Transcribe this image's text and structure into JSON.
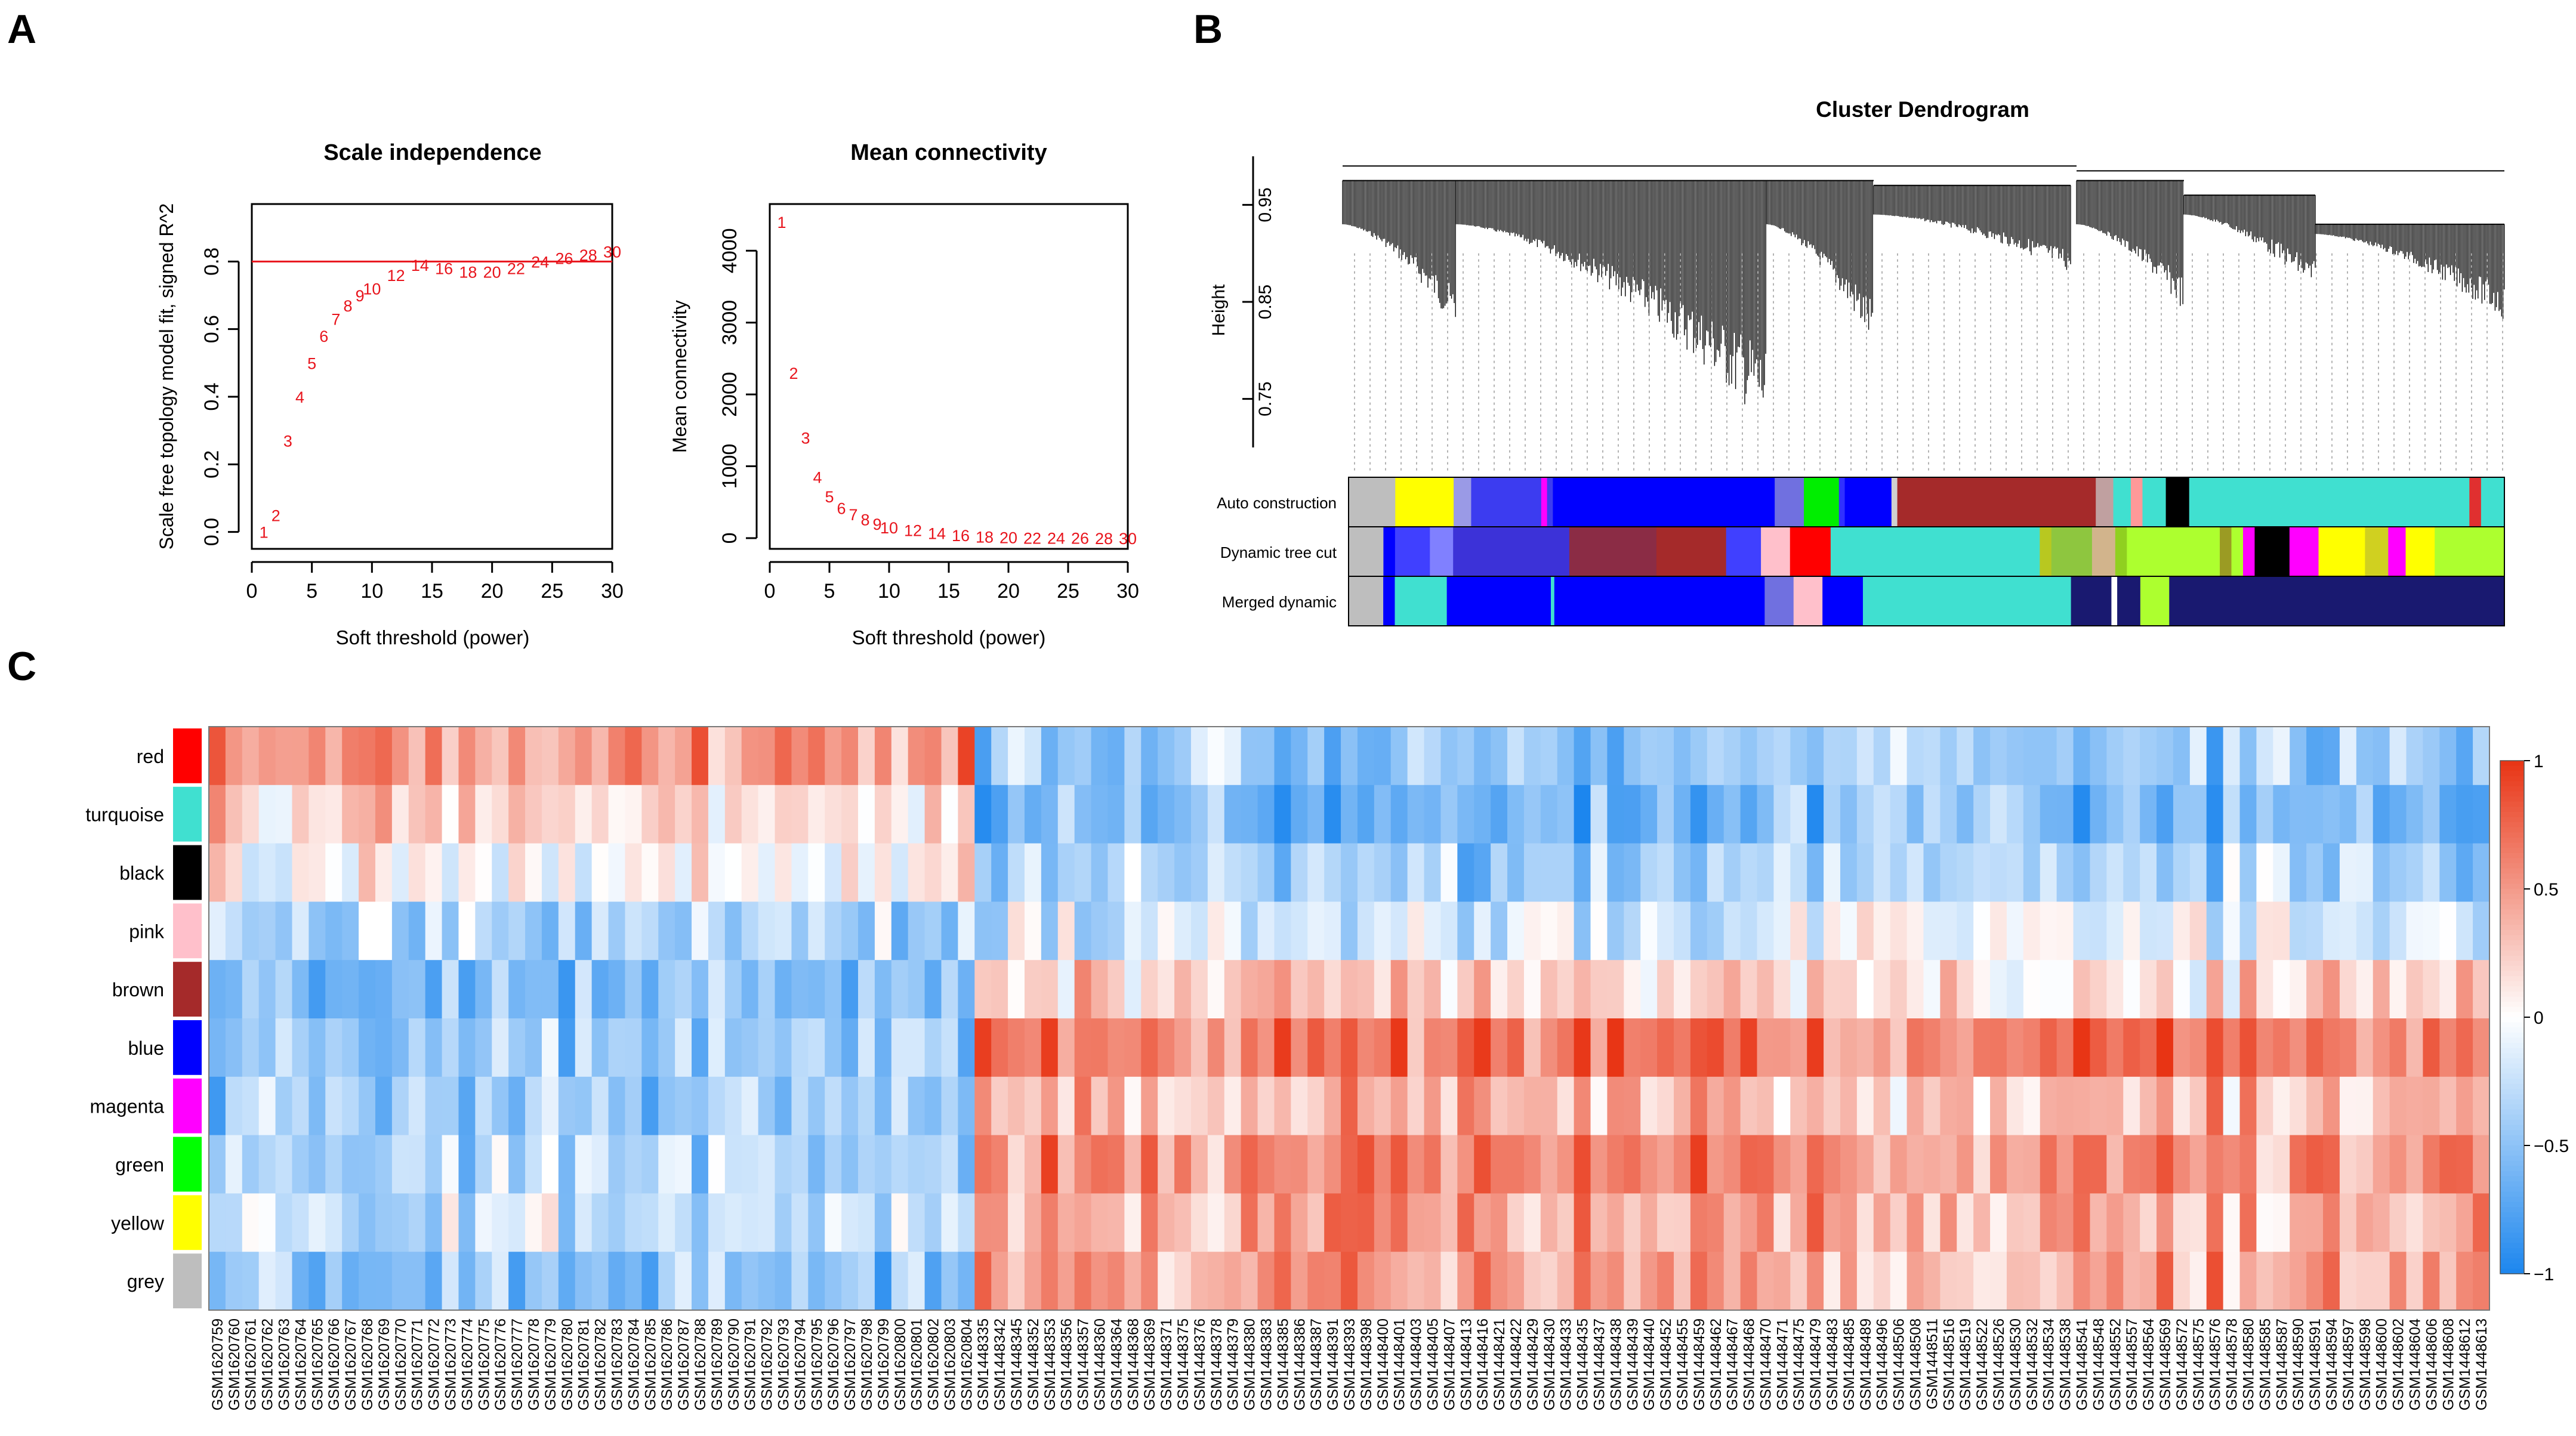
{
  "panels": {
    "a": "A",
    "b": "B",
    "c": "C"
  },
  "chart_data": [
    {
      "type": "scatter",
      "panel": "A",
      "title": "Scale independence",
      "xlabel": "Soft threshold (power)",
      "ylabel": "Scale free topology model fit, signed R^2",
      "xlim": [
        0,
        30
      ],
      "ylim": [
        -0.05,
        0.97
      ],
      "xticks": [
        "0",
        "5",
        "10",
        "15",
        "20",
        "25",
        "30"
      ],
      "yticks": [
        "0.0",
        "0.2",
        "0.4",
        "0.6",
        "0.8"
      ],
      "threshold_line": 0.8,
      "point_color": "#e8141c",
      "x": [
        1,
        2,
        3,
        4,
        5,
        6,
        7,
        8,
        9,
        10,
        12,
        14,
        16,
        18,
        20,
        22,
        24,
        26,
        28,
        30
      ],
      "y": [
        0.0,
        0.05,
        0.27,
        0.4,
        0.5,
        0.58,
        0.63,
        0.67,
        0.7,
        0.72,
        0.76,
        0.79,
        0.78,
        0.77,
        0.77,
        0.78,
        0.8,
        0.81,
        0.82,
        0.83
      ],
      "labels": [
        "1",
        "2",
        "3",
        "4",
        "5",
        "6",
        "7",
        "8",
        "9",
        "10",
        "12",
        "14",
        "16",
        "18",
        "20",
        "22",
        "24",
        "26",
        "28",
        "30"
      ]
    },
    {
      "type": "scatter",
      "panel": "A",
      "title": "Mean connectivity",
      "xlabel": "Soft threshold (power)",
      "ylabel": "Mean connectivity",
      "xlim": [
        0,
        30
      ],
      "ylim": [
        -150,
        4650
      ],
      "xticks": [
        "0",
        "5",
        "10",
        "15",
        "20",
        "25",
        "30"
      ],
      "yticks": [
        "0",
        "1000",
        "2000",
        "3000",
        "4000"
      ],
      "point_color": "#e8141c",
      "x": [
        1,
        2,
        3,
        4,
        5,
        6,
        7,
        8,
        9,
        10,
        12,
        14,
        16,
        18,
        20,
        22,
        24,
        26,
        28,
        30
      ],
      "y": [
        4400,
        2300,
        1400,
        850,
        580,
        420,
        330,
        260,
        200,
        150,
        110,
        70,
        40,
        20,
        10,
        5,
        3,
        2,
        1,
        0
      ],
      "labels": [
        "1",
        "2",
        "3",
        "4",
        "5",
        "6",
        "7",
        "8",
        "9",
        "10",
        "12",
        "14",
        "16",
        "18",
        "20",
        "22",
        "24",
        "26",
        "28",
        "30"
      ]
    },
    {
      "type": "dendrogram",
      "panel": "B",
      "title": "Cluster Dendrogram",
      "ylabel": "Height",
      "ylim": [
        0.7,
        1.0
      ],
      "yticks": [
        "0.75",
        "0.85",
        "0.95"
      ],
      "color_rows": [
        {
          "label": "Auto construction",
          "segments": [
            [
              0.04,
              "#bebebe"
            ],
            [
              0.05,
              "#ffff00"
            ],
            [
              0.015,
              "#9a9ae6"
            ],
            [
              0.06,
              "#3c3cf0"
            ],
            [
              0.005,
              "#ff00ff"
            ],
            [
              0.005,
              "#3c3cf0"
            ],
            [
              0.19,
              "#0000ff"
            ],
            [
              0.025,
              "#7070e0"
            ],
            [
              0.03,
              "#00ee00"
            ],
            [
              0.005,
              "#3030ff"
            ],
            [
              0.04,
              "#0000ff"
            ],
            [
              0.005,
              "#d0d0d0"
            ],
            [
              0.17,
              "#a52a2a"
            ],
            [
              0.015,
              "#c0a0a0"
            ],
            [
              0.015,
              "#40e0d0"
            ],
            [
              0.01,
              "#ff9999"
            ],
            [
              0.02,
              "#40e0d0"
            ],
            [
              0.02,
              "#000000"
            ],
            [
              0.24,
              "#40e0d0"
            ],
            [
              0.01,
              "#e03030"
            ],
            [
              0.02,
              "#40e0d0"
            ]
          ]
        },
        {
          "label": "Dynamic tree cut",
          "segments": [
            [
              0.03,
              "#bebebe"
            ],
            [
              0.01,
              "#0000ff"
            ],
            [
              0.03,
              "#4040ff"
            ],
            [
              0.02,
              "#8080ff"
            ],
            [
              0.1,
              "#3c32d8"
            ],
            [
              0.075,
              "#8b2c45"
            ],
            [
              0.06,
              "#a52a2a"
            ],
            [
              0.03,
              "#4040ff"
            ],
            [
              0.025,
              "#ffc0cb"
            ],
            [
              0.035,
              "#ff0000"
            ],
            [
              0.18,
              "#40e0d0"
            ],
            [
              0.01,
              "#b8c820"
            ],
            [
              0.035,
              "#8ec63f"
            ],
            [
              0.02,
              "#d2b48c"
            ],
            [
              0.01,
              "#90d020"
            ],
            [
              0.08,
              "#adff2f"
            ],
            [
              0.01,
              "#9b9b23"
            ],
            [
              0.01,
              "#adff2f"
            ],
            [
              0.01,
              "#ff00ff"
            ],
            [
              0.03,
              "#000000"
            ],
            [
              0.025,
              "#ff00ff"
            ],
            [
              0.04,
              "#ffff00"
            ],
            [
              0.02,
              "#d0d020"
            ],
            [
              0.015,
              "#ff00ff"
            ],
            [
              0.025,
              "#ffff00"
            ],
            [
              0.06,
              "#adff2f"
            ]
          ]
        },
        {
          "label": "Merged dynamic",
          "segments": [
            [
              0.03,
              "#bebebe"
            ],
            [
              0.01,
              "#0000ff"
            ],
            [
              0.045,
              "#40e0d0"
            ],
            [
              0.09,
              "#0000ff"
            ],
            [
              0.003,
              "#40e0d0"
            ],
            [
              0.182,
              "#0000ff"
            ],
            [
              0.025,
              "#7070e0"
            ],
            [
              0.025,
              "#ffc0cb"
            ],
            [
              0.035,
              "#0000ff"
            ],
            [
              0.18,
              "#40e0d0"
            ],
            [
              0.035,
              "#191970"
            ],
            [
              0.005,
              "#ffffff"
            ],
            [
              0.02,
              "#191970"
            ],
            [
              0.025,
              "#adff2f"
            ],
            [
              0.29,
              "#191970"
            ]
          ]
        }
      ]
    },
    {
      "type": "heatmap",
      "panel": "C",
      "rows": [
        "red",
        "turquoise",
        "black",
        "pink",
        "brown",
        "blue",
        "magenta",
        "green",
        "yellow",
        "grey"
      ],
      "row_colors": [
        "#ff0000",
        "#40e0d0",
        "#000000",
        "#ffc0cb",
        "#a52a2a",
        "#0000ff",
        "#ff00ff",
        "#00ff00",
        "#ffff00",
        "#bebebe"
      ],
      "colorbar_ticks": [
        "1",
        "0.5",
        "0",
        "−0.5",
        "−1"
      ],
      "colorbar_range": [
        -1,
        1
      ],
      "sample_groups": [
        {
          "prefix": "GSM16207",
          "count": 46,
          "pattern": [
            0.5,
            0.2,
            0.05,
            -0.35,
            -0.55,
            -0.45,
            -0.45,
            -0.35,
            -0.25,
            -0.5
          ]
        },
        {
          "prefix": "GSM14483",
          "count": 91,
          "pattern": [
            -0.45,
            -0.6,
            -0.4,
            -0.2,
            0.25,
            0.65,
            0.35,
            0.55,
            0.45,
            0.45
          ]
        }
      ],
      "columns_visible": [
        "GSM1620759",
        "GSM1620760",
        "GSM1620761",
        "GSM1620762",
        "GSM1620763",
        "GSM1620764",
        "GSM1620765",
        "GSM1620766",
        "GSM1620767",
        "GSM1620768",
        "GSM1620769",
        "GSM1620770",
        "GSM1620771",
        "GSM1620772",
        "GSM1620773",
        "GSM1620774",
        "GSM1620775",
        "GSM1620776",
        "GSM1620777",
        "GSM1620778",
        "GSM1620779",
        "GSM1620780",
        "GSM1620781",
        "GSM1620782",
        "GSM1620783",
        "GSM1620784",
        "GSM1620785",
        "GSM1620786",
        "GSM1620787",
        "GSM1620788",
        "GSM1620789",
        "GSM1620790",
        "GSM1620791",
        "GSM1620792",
        "GSM1620793",
        "GSM1620794",
        "GSM1620795",
        "GSM1620796",
        "GSM1620797",
        "GSM1620798",
        "GSM1620799",
        "GSM1620800",
        "GSM1620801",
        "GSM1620802",
        "GSM1620803",
        "GSM1620804",
        "GSM1448335",
        "GSM1448342",
        "GSM1448345",
        "GSM1448352",
        "GSM1448353",
        "GSM1448356",
        "GSM1448357",
        "GSM1448360",
        "GSM1448364",
        "GSM1448368",
        "GSM1448369",
        "GSM1448371",
        "GSM1448375",
        "GSM1448376",
        "GSM1448378",
        "GSM1448379",
        "GSM1448380",
        "GSM1448383",
        "GSM1448385",
        "GSM1448386",
        "GSM1448387",
        "GSM1448391",
        "GSM1448393",
        "GSM1448398",
        "GSM1448400",
        "GSM1448401",
        "GSM1448403",
        "GSM1448405",
        "GSM1448407",
        "GSM1448413",
        "GSM1448416",
        "GSM1448421",
        "GSM1448422",
        "GSM1448429",
        "GSM1448430",
        "GSM1448433",
        "GSM1448435",
        "GSM1448437",
        "GSM1448438",
        "GSM1448439",
        "GSM1448440",
        "GSM1448452",
        "GSM1448455",
        "GSM1448459",
        "GSM1448462",
        "GSM1448467",
        "GSM1448468",
        "GSM1448470",
        "GSM1448471",
        "GSM1448475",
        "GSM1448479",
        "GSM1448483",
        "GSM1448485",
        "GSM1448489",
        "GSM1448496",
        "GSM1448506",
        "GSM1448508",
        "GSM1448511",
        "GSM1448516",
        "GSM1448519",
        "GSM1448522",
        "GSM1448526",
        "GSM1448530",
        "GSM1448532",
        "GSM1448534",
        "GSM1448538",
        "GSM1448541",
        "GSM1448548",
        "GSM1448552",
        "GSM1448557",
        "GSM1448564",
        "GSM1448569",
        "GSM1448572",
        "GSM1448575",
        "GSM1448576",
        "GSM1448578",
        "GSM1448580",
        "GSM1448585",
        "GSM1448587",
        "GSM1448590",
        "GSM1448591",
        "GSM1448594",
        "GSM1448597",
        "GSM1448598",
        "GSM1448600",
        "GSM1448602",
        "GSM1448604",
        "GSM1448606",
        "GSM1448608",
        "GSM1448612",
        "GSM1448613"
      ]
    }
  ]
}
